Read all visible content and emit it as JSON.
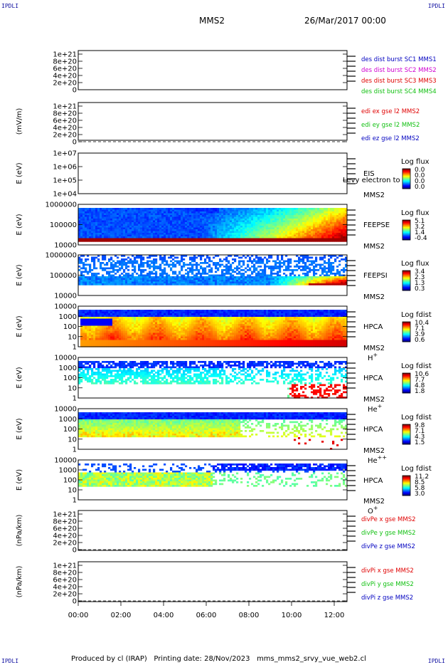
{
  "header": {
    "corner_tl": "IPDLI",
    "corner_tr": "IPDLI",
    "corner_bl": "IPDLI",
    "corner_br": "IPDLI",
    "spacecraft": "MMS2",
    "date": "26/Mar/2017 00:00"
  },
  "footer": {
    "produced_by": "Produced by cl (IRAP)",
    "printing_date": "Printing date: 28/Nov/2023",
    "script": "mms_mms2_srvy_vue_web2.cl"
  },
  "colors": {
    "red": "#e00000",
    "magenta": "#d000d0",
    "green": "#10c010",
    "blue": "#0000c0",
    "spectrogram_background": "#ffffff"
  },
  "chart_data": {
    "type": "multi-panel",
    "x_axis": {
      "ticks": [
        "00:00",
        "02:00",
        "04:00",
        "06:00",
        "08:00",
        "10:00",
        "12:00"
      ],
      "range_hours": [
        0,
        12.6
      ]
    },
    "panels": [
      {
        "id": "des-dist",
        "type": "line",
        "ylabel": "",
        "yticks": [
          "1e+21",
          "8e+20",
          "6e+20",
          "4e+20",
          "2e+20",
          "0"
        ],
        "dashed_zero": true,
        "legend": [
          {
            "text": "des dist burst SC1 MMS1",
            "color": "blue"
          },
          {
            "text": "des dist burst SC2 MMS2",
            "color": "magenta"
          },
          {
            "text": "des dist burst SC3 MMS3",
            "color": "red"
          },
          {
            "text": "des dist burst SC4 MMS4",
            "color": "green"
          }
        ]
      },
      {
        "id": "edi-e",
        "type": "line",
        "ylabel": "(mV/m)",
        "yticks": [
          "1e+21",
          "8e+20",
          "6e+20",
          "4e+20",
          "2e+20",
          "0"
        ],
        "dashed_zero": true,
        "legend": [
          {
            "text": "edi ex gse l2 MMS2",
            "color": "red"
          },
          {
            "text": "edi ey gse l2 MMS2",
            "color": "green"
          },
          {
            "text": "edi ez gse l2 MMS2",
            "color": "blue"
          }
        ]
      },
      {
        "id": "eis",
        "type": "heatmap",
        "ylabel": "E (eV)",
        "yticks": [
          "1e+07",
          "1e+06",
          "1e+05",
          "1e+04"
        ],
        "labels": [
          "EIS",
          "MMS2"
        ],
        "overlay_text": "Levy electron to",
        "cbar_title": "Log flux",
        "cbar_ticks": [
          "0.0",
          "0.0",
          "0.0",
          "0.0"
        ],
        "spectrum": "empty"
      },
      {
        "id": "feepse",
        "type": "heatmap",
        "ylabel": "E (eV)",
        "yticks": [
          "1000000",
          "100000",
          "10000"
        ],
        "labels": [
          "FEEPSE",
          "MMS2"
        ],
        "cbar_title": "Log flux",
        "cbar_ticks": [
          "5.1",
          "3.2",
          "1.4",
          "-0.4"
        ],
        "spectrum": "feeps_e"
      },
      {
        "id": "feepsi",
        "type": "heatmap",
        "ylabel": "E (eV)",
        "yticks": [
          "1000000",
          "100000",
          "10000"
        ],
        "labels": [
          "FEEPSI",
          "MMS2"
        ],
        "cbar_title": "Log flux",
        "cbar_ticks": [
          "3.4",
          "2.3",
          "1.3",
          "0.3"
        ],
        "spectrum": "feeps_i"
      },
      {
        "id": "hpca-h",
        "type": "heatmap",
        "ylabel": "E (eV)",
        "yticks": [
          "10000",
          "1000",
          "100",
          "10",
          "1"
        ],
        "labels": [
          "HPCA",
          "MMS2"
        ],
        "species": "H",
        "species_sup": "+",
        "cbar_title": "Log fdist",
        "cbar_ticks": [
          "10.4",
          "7.1",
          "3.9",
          "0.6"
        ],
        "spectrum": "hpca_h"
      },
      {
        "id": "hpca-he1",
        "type": "heatmap",
        "ylabel": "E (eV)",
        "yticks": [
          "10000",
          "1000",
          "100",
          "10",
          "1"
        ],
        "labels": [
          "HPCA",
          "MMS2"
        ],
        "species": "He",
        "species_sup": "+",
        "cbar_title": "Log fdist",
        "cbar_ticks": [
          "10.6",
          "7.7",
          "4.8",
          "1.8"
        ],
        "spectrum": "hpca_he1"
      },
      {
        "id": "hpca-he2",
        "type": "heatmap",
        "ylabel": "E (eV)",
        "yticks": [
          "10000",
          "1000",
          "100",
          "10",
          "1"
        ],
        "labels": [
          "HPCA",
          "MMS2"
        ],
        "species": "He",
        "species_sup": "++",
        "cbar_title": "Log fdist",
        "cbar_ticks": [
          "9.8",
          "7.1",
          "4.3",
          "1.5"
        ],
        "spectrum": "hpca_he2"
      },
      {
        "id": "hpca-o",
        "type": "heatmap",
        "ylabel": "E (eV)",
        "yticks": [
          "10000",
          "1000",
          "100",
          "10",
          "1"
        ],
        "labels": [
          "HPCA",
          "MMS2"
        ],
        "species": "O",
        "species_sup": "+",
        "cbar_title": "Log fdist",
        "cbar_ticks": [
          "11.2",
          "8.5",
          "5.8",
          "3.0"
        ],
        "spectrum": "hpca_o"
      },
      {
        "id": "divpe",
        "type": "line",
        "ylabel": "(nPa/km)",
        "yticks": [
          "1e+21",
          "8e+20",
          "6e+20",
          "4e+20",
          "2e+20",
          "0"
        ],
        "dashed_zero": true,
        "legend": [
          {
            "text": "divPe x gse MMS2",
            "color": "red"
          },
          {
            "text": "divPe y gse MMS2",
            "color": "green"
          },
          {
            "text": "divPe z gse MMS2",
            "color": "blue"
          }
        ]
      },
      {
        "id": "divpi",
        "type": "line",
        "ylabel": "(nPa/km)",
        "yticks": [
          "1e+21",
          "8e+20",
          "6e+20",
          "4e+20",
          "2e+20",
          "0"
        ],
        "dashed_zero": true,
        "legend": [
          {
            "text": "divPi x gse MMS2",
            "color": "red"
          },
          {
            "text": "divPi y gse MMS2",
            "color": "green"
          },
          {
            "text": "divPi z gse MMS2",
            "color": "blue"
          }
        ]
      }
    ]
  }
}
